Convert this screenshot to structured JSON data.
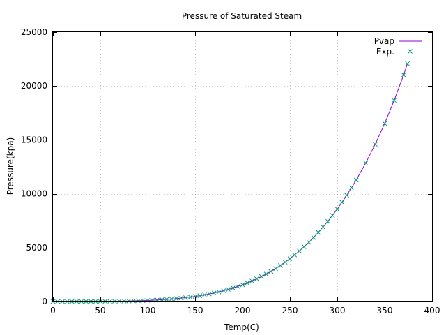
{
  "chart_data": {
    "type": "line",
    "title": "Pressure of Saturated Steam",
    "xlabel": "Temp(C)",
    "ylabel": "Pressure(kpa)",
    "xlim": [
      0,
      400
    ],
    "ylim": [
      0,
      25000
    ],
    "xticks": [
      0,
      50,
      100,
      150,
      200,
      250,
      300,
      350,
      400
    ],
    "yticks": [
      0,
      5000,
      10000,
      15000,
      20000,
      25000
    ],
    "grid": true,
    "legend_position": "top-right",
    "colors": {
      "line": "#9400d3",
      "marker": "#009e73",
      "axis": "#000000",
      "grid": "#a0a0a0"
    },
    "series": [
      {
        "name": "Pvap",
        "kind": "line",
        "x": [
          0,
          10,
          20,
          30,
          40,
          50,
          60,
          70,
          80,
          90,
          100,
          110,
          120,
          130,
          140,
          150,
          160,
          170,
          180,
          190,
          200,
          210,
          220,
          230,
          240,
          250,
          260,
          270,
          280,
          290,
          300,
          310,
          320,
          330,
          340,
          350,
          360,
          370,
          374
        ],
        "y": [
          0.6,
          1.2,
          2.3,
          4.2,
          7.4,
          12.3,
          19.9,
          31.2,
          47.4,
          70.1,
          101.3,
          143.3,
          198.5,
          270.1,
          361.3,
          476,
          618,
          792,
          1002,
          1254,
          1554,
          1906,
          2318,
          2795,
          3345,
          3974,
          4689,
          5500,
          6413,
          7438,
          8583,
          9860,
          11279,
          12852,
          14594,
          16521,
          18665,
          21030,
          22064
        ]
      },
      {
        "name": "Exp.",
        "kind": "points",
        "x": [
          0,
          5,
          10,
          15,
          20,
          25,
          30,
          35,
          40,
          45,
          50,
          55,
          60,
          65,
          70,
          75,
          80,
          85,
          90,
          95,
          100,
          105,
          110,
          115,
          120,
          125,
          130,
          135,
          140,
          145,
          150,
          155,
          160,
          165,
          170,
          175,
          180,
          185,
          190,
          195,
          200,
          205,
          210,
          215,
          220,
          225,
          230,
          235,
          240,
          245,
          250,
          255,
          260,
          265,
          270,
          275,
          280,
          285,
          290,
          295,
          300,
          305,
          310,
          315,
          320,
          330,
          340,
          350,
          360,
          370,
          374
        ],
        "y": [
          0.6,
          0.9,
          1.2,
          1.7,
          2.3,
          3.2,
          4.2,
          5.6,
          7.4,
          9.6,
          12.3,
          15.8,
          19.9,
          25.0,
          31.2,
          38.6,
          47.4,
          57.9,
          70.1,
          84.6,
          101.3,
          120.8,
          143.3,
          169.1,
          198.5,
          232.1,
          270.1,
          313.0,
          361.3,
          415.5,
          476,
          543,
          618,
          700,
          792,
          892,
          1002,
          1122,
          1254,
          1397,
          1554,
          1723,
          1906,
          2104,
          2318,
          2548,
          2795,
          3060,
          3345,
          3648,
          3974,
          4319,
          4689,
          5082,
          5500,
          5944,
          6413,
          6910,
          7438,
          7995,
          8583,
          9205,
          9860,
          10548,
          11279,
          12852,
          14594,
          16521,
          18665,
          21030,
          22064
        ]
      }
    ]
  }
}
